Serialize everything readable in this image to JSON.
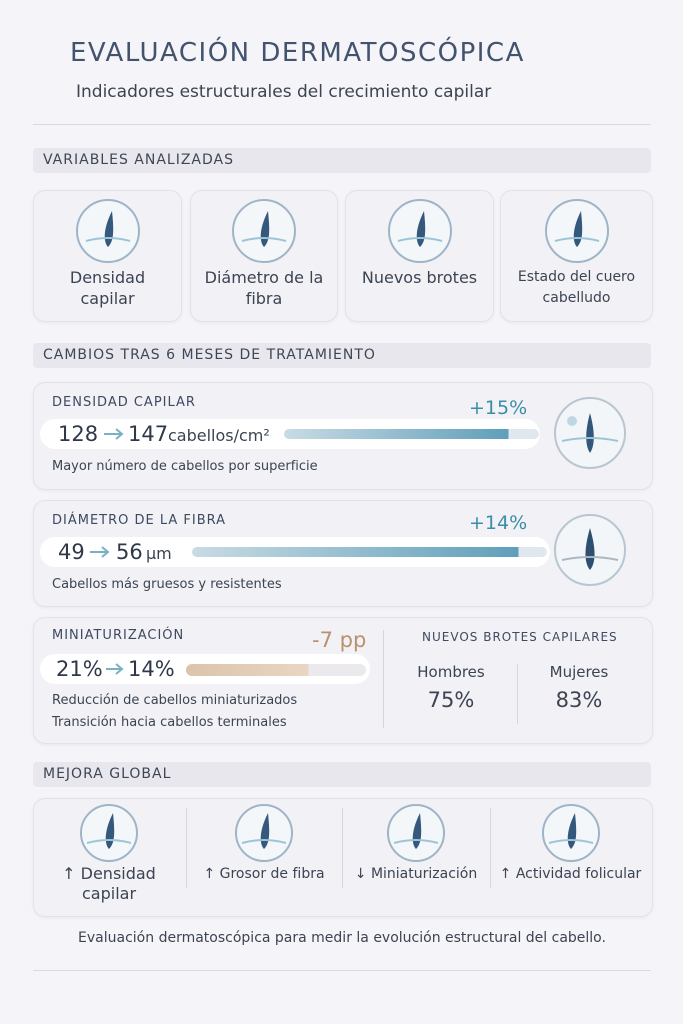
{
  "header": {
    "title": "EVALUACIÓN DERMATOSCÓPICA",
    "subtitle": "Indicadores estructurales  del crecimiento capilar"
  },
  "variables": {
    "heading": "VARIABLES ANALIZADAS",
    "items": [
      "Densidad capilar",
      "Diámetro de la fibra",
      "Nuevos brotes",
      "Estado del cuero cabelludo"
    ]
  },
  "changes": {
    "heading": "CAMBIOS TRAS 6 MESES DE TRATAMIENTO",
    "density": {
      "label": "DENSIDAD CAPILAR",
      "change": "+15%",
      "from": "128",
      "to": "147",
      "unit": "cabellos/cm²",
      "note": "Mayor número de cabellos por superficie"
    },
    "diameter": {
      "label": "DIÁMETRO DE LA FIBRA",
      "change": "+14%",
      "from": "49",
      "to": "56",
      "unit": "μm",
      "note": "Cabellos más gruesos y resistentes"
    },
    "miniaturization": {
      "label": "MINIATURIZACIÓN",
      "change": "-7 pp",
      "from": "21%",
      "to": "14%",
      "notes": [
        "Reducción de cabellos miniaturizados",
        "Transición hacia cabellos terminales"
      ]
    },
    "new_growth": {
      "heading": "NUEVOS BROTES CAPILARES",
      "groups": [
        {
          "name": "Hombres",
          "value": "75%"
        },
        {
          "name": "Mujeres",
          "value": "83%"
        }
      ]
    }
  },
  "global": {
    "heading": "MEJORA GLOBAL",
    "items": [
      "↑ Densidad capilar",
      "↑ Grosor de fibra",
      "↓ Miniaturización",
      "↑ Actividad folicular"
    ]
  },
  "footer": "Evaluación dermatoscópica para medir la evolución estructural del cabello."
}
